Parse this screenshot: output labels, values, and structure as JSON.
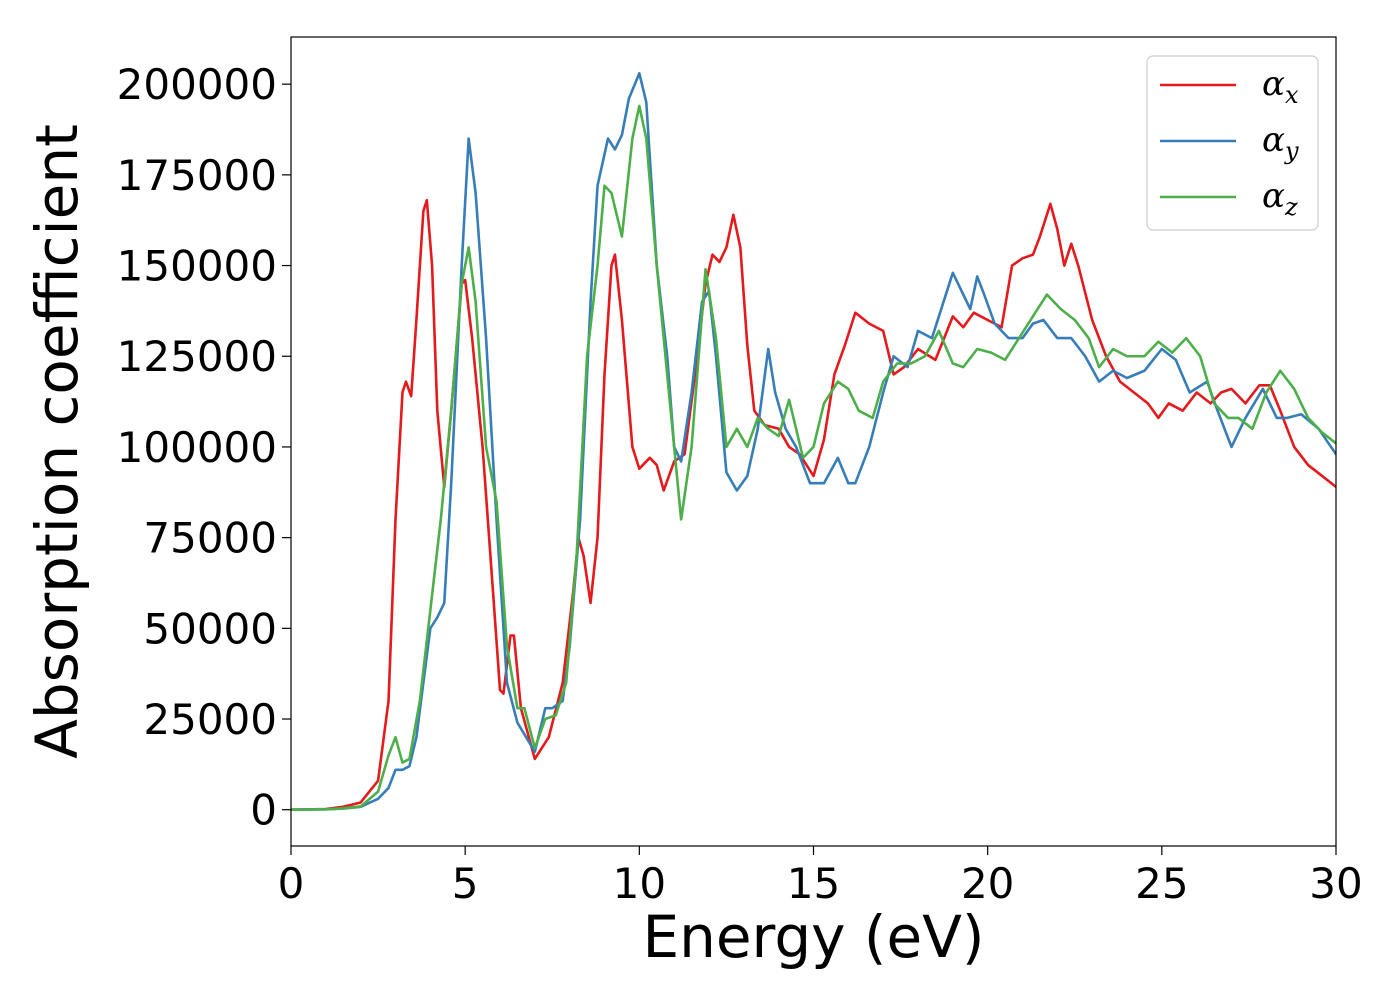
{
  "chart_data": {
    "type": "line",
    "title": "",
    "xlabel": "Energy (eV)",
    "ylabel": "Absorption coefficient",
    "xlim": [
      0,
      30
    ],
    "ylim": [
      -10000,
      213000
    ],
    "xticks": [
      0,
      5,
      10,
      15,
      20,
      25,
      30
    ],
    "xtick_labels": [
      "0",
      "5",
      "10",
      "15",
      "20",
      "25",
      "30"
    ],
    "yticks": [
      0,
      25000,
      50000,
      75000,
      100000,
      125000,
      150000,
      175000,
      200000
    ],
    "ytick_labels": [
      "0",
      "25000",
      "50000",
      "75000",
      "100000",
      "125000",
      "150000",
      "175000",
      "200000"
    ],
    "grid": false,
    "legend_position": "top-right",
    "series": [
      {
        "name": "α_x",
        "legend_base": "α",
        "legend_sub": "x",
        "color": "#e41a1c",
        "points": [
          [
            0,
            0
          ],
          [
            1,
            200
          ],
          [
            1.5,
            800
          ],
          [
            2,
            2000
          ],
          [
            2.5,
            8000
          ],
          [
            2.8,
            30000
          ],
          [
            3.0,
            80000
          ],
          [
            3.2,
            115000
          ],
          [
            3.3,
            118000
          ],
          [
            3.45,
            114000
          ],
          [
            3.6,
            135000
          ],
          [
            3.8,
            165000
          ],
          [
            3.9,
            168000
          ],
          [
            4.05,
            150000
          ],
          [
            4.2,
            110000
          ],
          [
            4.4,
            89000
          ],
          [
            4.6,
            110000
          ],
          [
            4.9,
            145000
          ],
          [
            5.0,
            146000
          ],
          [
            5.2,
            130000
          ],
          [
            5.5,
            100000
          ],
          [
            5.8,
            60000
          ],
          [
            6.0,
            33000
          ],
          [
            6.1,
            32000
          ],
          [
            6.3,
            48000
          ],
          [
            6.4,
            48000
          ],
          [
            6.6,
            28000
          ],
          [
            7.0,
            14000
          ],
          [
            7.4,
            20000
          ],
          [
            7.8,
            35000
          ],
          [
            8.1,
            60000
          ],
          [
            8.25,
            75000
          ],
          [
            8.4,
            70000
          ],
          [
            8.6,
            57000
          ],
          [
            8.8,
            75000
          ],
          [
            9.0,
            120000
          ],
          [
            9.2,
            150000
          ],
          [
            9.3,
            153000
          ],
          [
            9.5,
            135000
          ],
          [
            9.8,
            100000
          ],
          [
            10.0,
            94000
          ],
          [
            10.3,
            97000
          ],
          [
            10.5,
            95000
          ],
          [
            10.7,
            88000
          ],
          [
            11.0,
            96000
          ],
          [
            11.3,
            98000
          ],
          [
            11.6,
            120000
          ],
          [
            11.9,
            145000
          ],
          [
            12.1,
            153000
          ],
          [
            12.3,
            151000
          ],
          [
            12.5,
            155000
          ],
          [
            12.7,
            164000
          ],
          [
            12.9,
            155000
          ],
          [
            13.1,
            128000
          ],
          [
            13.3,
            110000
          ],
          [
            13.6,
            106000
          ],
          [
            14.0,
            105000
          ],
          [
            14.3,
            100000
          ],
          [
            14.6,
            98000
          ],
          [
            15.0,
            92000
          ],
          [
            15.3,
            102000
          ],
          [
            15.6,
            120000
          ],
          [
            15.9,
            128000
          ],
          [
            16.2,
            137000
          ],
          [
            16.6,
            134000
          ],
          [
            17.0,
            132000
          ],
          [
            17.3,
            120000
          ],
          [
            17.6,
            122000
          ],
          [
            18.0,
            127000
          ],
          [
            18.5,
            124000
          ],
          [
            19.0,
            136000
          ],
          [
            19.3,
            133000
          ],
          [
            19.6,
            137000
          ],
          [
            20.0,
            135000
          ],
          [
            20.4,
            133000
          ],
          [
            20.7,
            150000
          ],
          [
            21.0,
            152000
          ],
          [
            21.3,
            153000
          ],
          [
            21.5,
            158000
          ],
          [
            21.8,
            167000
          ],
          [
            22.0,
            160000
          ],
          [
            22.2,
            150000
          ],
          [
            22.4,
            156000
          ],
          [
            22.6,
            150000
          ],
          [
            23.0,
            135000
          ],
          [
            23.4,
            125000
          ],
          [
            23.8,
            118000
          ],
          [
            24.2,
            115000
          ],
          [
            24.6,
            112000
          ],
          [
            24.9,
            108000
          ],
          [
            25.2,
            112000
          ],
          [
            25.6,
            110000
          ],
          [
            26.0,
            115000
          ],
          [
            26.4,
            112000
          ],
          [
            26.7,
            115000
          ],
          [
            27.0,
            116000
          ],
          [
            27.4,
            112000
          ],
          [
            27.8,
            117000
          ],
          [
            28.1,
            117000
          ],
          [
            28.4,
            110000
          ],
          [
            28.8,
            100000
          ],
          [
            29.2,
            95000
          ],
          [
            29.6,
            92000
          ],
          [
            30.0,
            89000
          ]
        ]
      },
      {
        "name": "α_y",
        "legend_base": "α",
        "legend_sub": "y",
        "color": "#377eb8",
        "points": [
          [
            0,
            0
          ],
          [
            1,
            100
          ],
          [
            1.5,
            300
          ],
          [
            2,
            800
          ],
          [
            2.5,
            3000
          ],
          [
            2.8,
            6000
          ],
          [
            3.0,
            11000
          ],
          [
            3.2,
            11000
          ],
          [
            3.4,
            12000
          ],
          [
            3.6,
            20000
          ],
          [
            3.8,
            35000
          ],
          [
            4.0,
            50000
          ],
          [
            4.2,
            53000
          ],
          [
            4.4,
            57000
          ],
          [
            4.6,
            90000
          ],
          [
            4.9,
            150000
          ],
          [
            5.1,
            185000
          ],
          [
            5.3,
            170000
          ],
          [
            5.6,
            130000
          ],
          [
            5.9,
            80000
          ],
          [
            6.2,
            35000
          ],
          [
            6.5,
            24000
          ],
          [
            7.0,
            16000
          ],
          [
            7.3,
            28000
          ],
          [
            7.5,
            28000
          ],
          [
            7.8,
            30000
          ],
          [
            8.0,
            45000
          ],
          [
            8.3,
            80000
          ],
          [
            8.6,
            140000
          ],
          [
            8.8,
            172000
          ],
          [
            9.1,
            185000
          ],
          [
            9.3,
            182000
          ],
          [
            9.5,
            186000
          ],
          [
            9.7,
            196000
          ],
          [
            10.0,
            203000
          ],
          [
            10.2,
            195000
          ],
          [
            10.5,
            150000
          ],
          [
            10.8,
            125000
          ],
          [
            11.0,
            100000
          ],
          [
            11.2,
            96000
          ],
          [
            11.5,
            115000
          ],
          [
            11.8,
            140000
          ],
          [
            12.0,
            143000
          ],
          [
            12.2,
            125000
          ],
          [
            12.5,
            93000
          ],
          [
            12.8,
            88000
          ],
          [
            13.1,
            92000
          ],
          [
            13.4,
            105000
          ],
          [
            13.7,
            127000
          ],
          [
            13.9,
            115000
          ],
          [
            14.2,
            105000
          ],
          [
            14.5,
            100000
          ],
          [
            14.9,
            90000
          ],
          [
            15.3,
            90000
          ],
          [
            15.7,
            97000
          ],
          [
            16.0,
            90000
          ],
          [
            16.2,
            90000
          ],
          [
            16.6,
            100000
          ],
          [
            17.0,
            115000
          ],
          [
            17.3,
            125000
          ],
          [
            17.7,
            122000
          ],
          [
            18.0,
            132000
          ],
          [
            18.4,
            130000
          ],
          [
            18.8,
            142000
          ],
          [
            19.0,
            148000
          ],
          [
            19.3,
            142000
          ],
          [
            19.5,
            138000
          ],
          [
            19.7,
            147000
          ],
          [
            19.9,
            142000
          ],
          [
            20.2,
            134000
          ],
          [
            20.6,
            130000
          ],
          [
            21.0,
            130000
          ],
          [
            21.3,
            134000
          ],
          [
            21.6,
            135000
          ],
          [
            22.0,
            130000
          ],
          [
            22.4,
            130000
          ],
          [
            22.8,
            125000
          ],
          [
            23.2,
            118000
          ],
          [
            23.6,
            121000
          ],
          [
            24.0,
            119000
          ],
          [
            24.5,
            121000
          ],
          [
            25.0,
            127000
          ],
          [
            25.4,
            124000
          ],
          [
            25.8,
            115000
          ],
          [
            26.3,
            118000
          ],
          [
            26.6,
            110000
          ],
          [
            27.0,
            100000
          ],
          [
            27.4,
            108000
          ],
          [
            27.9,
            116000
          ],
          [
            28.3,
            108000
          ],
          [
            28.6,
            108000
          ],
          [
            29.0,
            109000
          ],
          [
            29.5,
            105000
          ],
          [
            30.0,
            98000
          ]
        ]
      },
      {
        "name": "α_z",
        "legend_base": "α",
        "legend_sub": "z",
        "color": "#4daf4a",
        "points": [
          [
            0,
            0
          ],
          [
            1,
            100
          ],
          [
            1.5,
            400
          ],
          [
            2,
            900
          ],
          [
            2.5,
            5000
          ],
          [
            2.8,
            15000
          ],
          [
            3.0,
            20000
          ],
          [
            3.2,
            13000
          ],
          [
            3.4,
            14000
          ],
          [
            3.7,
            30000
          ],
          [
            4.0,
            55000
          ],
          [
            4.3,
            80000
          ],
          [
            4.6,
            110000
          ],
          [
            4.9,
            145000
          ],
          [
            5.1,
            155000
          ],
          [
            5.3,
            140000
          ],
          [
            5.6,
            100000
          ],
          [
            5.9,
            85000
          ],
          [
            6.2,
            45000
          ],
          [
            6.5,
            28000
          ],
          [
            6.7,
            28000
          ],
          [
            7.0,
            17000
          ],
          [
            7.3,
            25000
          ],
          [
            7.6,
            26000
          ],
          [
            7.9,
            35000
          ],
          [
            8.2,
            70000
          ],
          [
            8.5,
            125000
          ],
          [
            8.8,
            150000
          ],
          [
            9.0,
            172000
          ],
          [
            9.2,
            170000
          ],
          [
            9.5,
            158000
          ],
          [
            9.8,
            185000
          ],
          [
            10.0,
            194000
          ],
          [
            10.2,
            185000
          ],
          [
            10.5,
            150000
          ],
          [
            10.8,
            120000
          ],
          [
            11.2,
            80000
          ],
          [
            11.5,
            100000
          ],
          [
            11.9,
            149000
          ],
          [
            12.2,
            130000
          ],
          [
            12.5,
            100000
          ],
          [
            12.8,
            105000
          ],
          [
            13.1,
            100000
          ],
          [
            13.4,
            108000
          ],
          [
            13.7,
            105000
          ],
          [
            14.0,
            103000
          ],
          [
            14.3,
            113000
          ],
          [
            14.7,
            97000
          ],
          [
            15.0,
            100000
          ],
          [
            15.3,
            112000
          ],
          [
            15.7,
            118000
          ],
          [
            16.0,
            116000
          ],
          [
            16.3,
            110000
          ],
          [
            16.7,
            108000
          ],
          [
            17.0,
            118000
          ],
          [
            17.4,
            123000
          ],
          [
            17.8,
            123000
          ],
          [
            18.2,
            125000
          ],
          [
            18.6,
            132000
          ],
          [
            19.0,
            123000
          ],
          [
            19.3,
            122000
          ],
          [
            19.7,
            127000
          ],
          [
            20.1,
            126000
          ],
          [
            20.5,
            124000
          ],
          [
            20.9,
            130000
          ],
          [
            21.3,
            136000
          ],
          [
            21.7,
            142000
          ],
          [
            22.1,
            138000
          ],
          [
            22.5,
            135000
          ],
          [
            22.9,
            130000
          ],
          [
            23.2,
            122000
          ],
          [
            23.6,
            127000
          ],
          [
            24.0,
            125000
          ],
          [
            24.5,
            125000
          ],
          [
            24.9,
            129000
          ],
          [
            25.3,
            126000
          ],
          [
            25.7,
            130000
          ],
          [
            26.1,
            125000
          ],
          [
            26.5,
            112000
          ],
          [
            26.9,
            108000
          ],
          [
            27.2,
            108000
          ],
          [
            27.6,
            105000
          ],
          [
            28.0,
            115000
          ],
          [
            28.4,
            121000
          ],
          [
            28.8,
            116000
          ],
          [
            29.2,
            108000
          ],
          [
            29.6,
            104000
          ],
          [
            30.0,
            101000
          ]
        ]
      }
    ]
  }
}
